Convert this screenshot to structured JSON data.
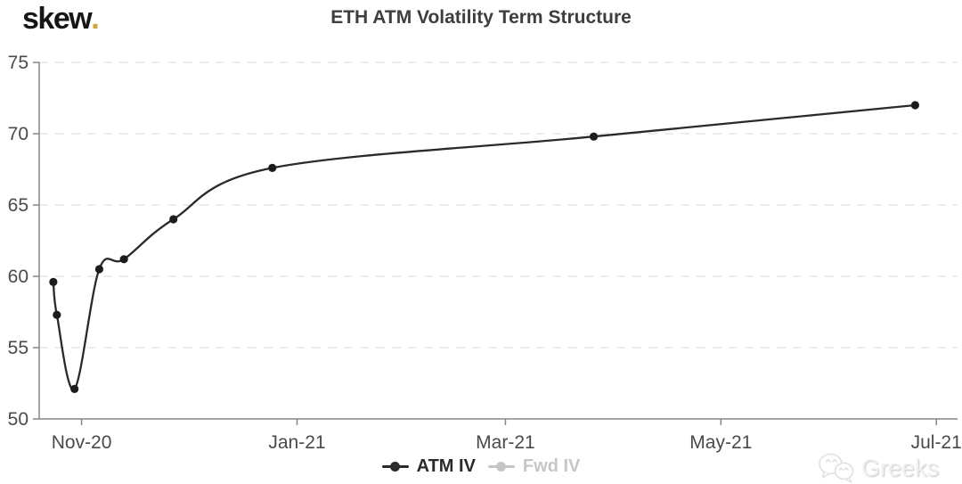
{
  "header": {
    "logo_text": "skew",
    "logo_dot": ".",
    "logo_dot_color": "#D8A13C"
  },
  "chart_data": {
    "type": "line",
    "title": "ETH ATM Volatility Term Structure",
    "x_axis": {
      "type": "date",
      "min": "2020-10-20",
      "max": "2021-07-07",
      "ticks": [
        {
          "label": "Nov-20",
          "date": "2020-11-01"
        },
        {
          "label": "Jan-21",
          "date": "2021-01-01"
        },
        {
          "label": "Mar-21",
          "date": "2021-03-01"
        },
        {
          "label": "May-21",
          "date": "2021-05-01"
        },
        {
          "label": "Jul-21",
          "date": "2021-07-01"
        }
      ]
    },
    "y_axis": {
      "min": 50,
      "max": 75,
      "ticks": [
        50,
        55,
        60,
        65,
        70,
        75
      ]
    },
    "grid": {
      "horizontal": true,
      "style": "dashed",
      "color": "#e2e2e2"
    },
    "legend_position": "bottom-center",
    "series": [
      {
        "name": "ATM IV",
        "color": "#2a2a2a",
        "visible": true,
        "x": [
          "2020-10-24",
          "2020-10-25",
          "2020-10-30",
          "2020-11-06",
          "2020-11-13",
          "2020-11-27",
          "2020-12-25",
          "2021-03-26",
          "2021-06-25"
        ],
        "values": [
          59.6,
          57.3,
          52.1,
          60.5,
          61.2,
          64.0,
          67.6,
          69.8,
          72.0
        ]
      },
      {
        "name": "Fwd IV",
        "color": "#c6c6c6",
        "visible": false,
        "x": [],
        "values": []
      }
    ]
  },
  "legend": {
    "items": [
      {
        "label": "ATM IV",
        "color": "#2a2a2a",
        "active": true
      },
      {
        "label": "Fwd IV",
        "color": "#c6c6c6",
        "active": false
      }
    ]
  },
  "watermark": {
    "text": "Greeks",
    "icon": "wechat-icon"
  }
}
